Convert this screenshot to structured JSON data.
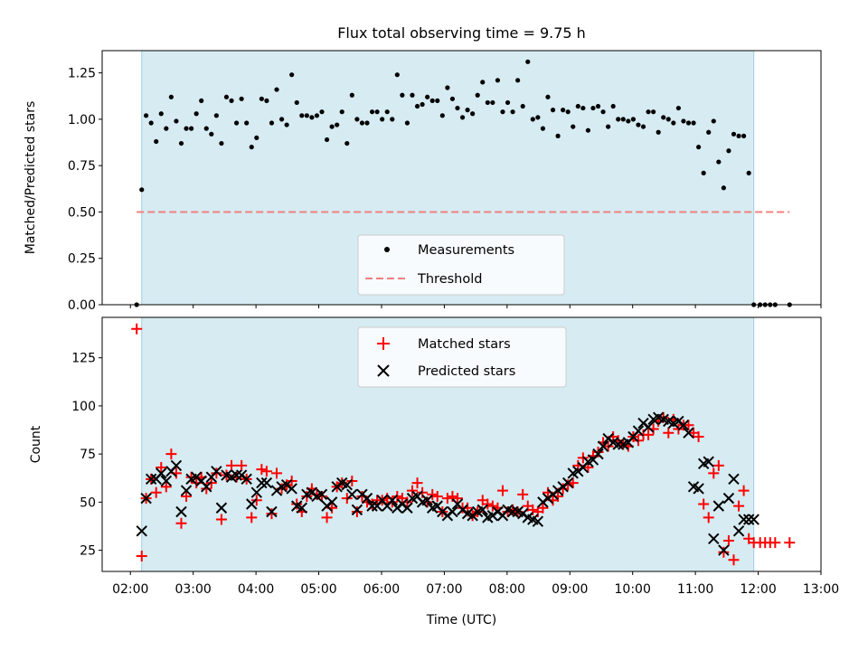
{
  "chart_data": [
    {
      "type": "scatter",
      "title": "Flux total observing time = 9.75 h",
      "ylabel": "Matched/Predicted stars",
      "xlabel": "",
      "xlim": [
        1.55,
        13.0
      ],
      "ylim": [
        0.0,
        1.37
      ],
      "yticks": [
        0.0,
        0.25,
        0.5,
        0.75,
        1.0,
        1.25
      ],
      "ytick_labels": [
        "0.00",
        "0.25",
        "0.50",
        "0.75",
        "1.00",
        "1.25"
      ],
      "shaded_span": [
        2.18,
        11.93
      ],
      "threshold": {
        "label": "Threshold",
        "value": 0.5,
        "x_range": [
          2.1,
          12.5
        ],
        "color": "#f08080"
      },
      "legend": {
        "position": "lower-center",
        "entries": [
          "Measurements",
          "Threshold"
        ]
      },
      "series": [
        {
          "name": "Measurements",
          "marker": "dot",
          "color": "#000000",
          "x": [
            2.1,
            2.18,
            2.25,
            2.33,
            2.41,
            2.49,
            2.57,
            2.65,
            2.73,
            2.81,
            2.89,
            2.97,
            3.05,
            3.13,
            3.21,
            3.29,
            3.37,
            3.45,
            3.53,
            3.61,
            3.69,
            3.77,
            3.85,
            3.93,
            4.01,
            4.09,
            4.17,
            4.25,
            4.33,
            4.41,
            4.49,
            4.57,
            4.65,
            4.73,
            4.81,
            4.89,
            4.97,
            5.05,
            5.13,
            5.21,
            5.29,
            5.37,
            5.45,
            5.53,
            5.61,
            5.69,
            5.77,
            5.85,
            5.93,
            6.01,
            6.09,
            6.17,
            6.25,
            6.33,
            6.41,
            6.49,
            6.57,
            6.65,
            6.73,
            6.81,
            6.89,
            6.97,
            7.05,
            7.13,
            7.21,
            7.29,
            7.37,
            7.45,
            7.53,
            7.61,
            7.69,
            7.77,
            7.85,
            7.93,
            8.01,
            8.09,
            8.17,
            8.25,
            8.33,
            8.41,
            8.49,
            8.57,
            8.65,
            8.73,
            8.81,
            8.89,
            8.97,
            9.05,
            9.13,
            9.21,
            9.29,
            9.37,
            9.45,
            9.53,
            9.61,
            9.69,
            9.77,
            9.85,
            9.93,
            10.01,
            10.09,
            10.17,
            10.25,
            10.33,
            10.41,
            10.49,
            10.57,
            10.65,
            10.73,
            10.81,
            10.89,
            10.97,
            11.05,
            11.13,
            11.21,
            11.29,
            11.37,
            11.45,
            11.53,
            11.61,
            11.69,
            11.77,
            11.85,
            11.93,
            12.03,
            12.11,
            12.19,
            12.27,
            12.5
          ],
          "y": [
            0.0,
            0.62,
            1.02,
            0.98,
            0.88,
            1.03,
            0.95,
            1.12,
            0.99,
            0.87,
            0.95,
            0.95,
            1.03,
            1.1,
            0.95,
            0.92,
            1.02,
            0.87,
            1.12,
            1.1,
            0.98,
            1.11,
            0.98,
            0.85,
            0.9,
            1.11,
            1.1,
            0.98,
            1.16,
            1.0,
            0.97,
            1.24,
            1.09,
            1.02,
            1.02,
            1.01,
            1.02,
            1.04,
            0.89,
            0.96,
            0.97,
            1.04,
            0.87,
            1.13,
            1.0,
            0.98,
            0.98,
            1.04,
            1.04,
            1.0,
            1.04,
            1.0,
            1.24,
            1.13,
            0.98,
            1.13,
            1.07,
            1.08,
            1.12,
            1.1,
            1.1,
            1.02,
            1.17,
            1.11,
            1.06,
            1.01,
            1.05,
            1.03,
            1.13,
            1.2,
            1.09,
            1.09,
            1.21,
            1.04,
            1.09,
            1.04,
            1.21,
            1.07,
            1.31,
            1.0,
            1.01,
            0.95,
            1.12,
            1.05,
            0.91,
            1.05,
            1.04,
            0.96,
            1.07,
            1.06,
            0.94,
            1.06,
            1.07,
            1.04,
            0.96,
            1.07,
            1.0,
            1.0,
            0.99,
            1.0,
            0.97,
            0.96,
            1.04,
            1.04,
            0.93,
            1.01,
            1.0,
            0.98,
            1.06,
            0.99,
            0.98,
            0.98,
            0.85,
            0.71,
            0.93,
            0.99,
            0.77,
            0.63,
            0.83,
            0.92,
            0.91,
            0.91,
            0.71,
            0.0,
            0.0,
            0.0,
            0.0,
            0.0,
            0.0
          ]
        }
      ]
    },
    {
      "type": "scatter",
      "title": "",
      "ylabel": "Count",
      "xlabel": "Time (UTC)",
      "xlim": [
        1.55,
        13.0
      ],
      "ylim": [
        14,
        146
      ],
      "yticks": [
        25,
        50,
        75,
        100,
        125
      ],
      "ytick_labels": [
        "25",
        "50",
        "75",
        "100",
        "125"
      ],
      "xticks": [
        2,
        3,
        4,
        5,
        6,
        7,
        8,
        9,
        10,
        11,
        12,
        13
      ],
      "xtick_labels": [
        "02:00",
        "03:00",
        "04:00",
        "05:00",
        "06:00",
        "07:00",
        "08:00",
        "09:00",
        "10:00",
        "11:00",
        "12:00",
        "13:00"
      ],
      "shaded_span": [
        2.18,
        11.93
      ],
      "legend": {
        "position": "upper-center",
        "entries": [
          "Matched stars",
          "Predicted stars"
        ]
      },
      "series": [
        {
          "name": "Matched stars",
          "marker": "plus",
          "color": "#ff0000",
          "x": [
            2.1,
            2.18,
            2.25,
            2.33,
            2.41,
            2.49,
            2.57,
            2.65,
            2.73,
            2.81,
            2.89,
            2.97,
            3.05,
            3.13,
            3.21,
            3.29,
            3.37,
            3.45,
            3.53,
            3.61,
            3.69,
            3.77,
            3.85,
            3.93,
            4.01,
            4.09,
            4.17,
            4.25,
            4.33,
            4.41,
            4.49,
            4.57,
            4.65,
            4.73,
            4.81,
            4.89,
            4.97,
            5.05,
            5.13,
            5.21,
            5.29,
            5.37,
            5.45,
            5.53,
            5.61,
            5.69,
            5.77,
            5.85,
            5.93,
            6.01,
            6.09,
            6.17,
            6.25,
            6.33,
            6.41,
            6.49,
            6.57,
            6.65,
            6.73,
            6.81,
            6.89,
            6.97,
            7.05,
            7.13,
            7.21,
            7.29,
            7.37,
            7.45,
            7.53,
            7.61,
            7.69,
            7.77,
            7.85,
            7.93,
            8.01,
            8.09,
            8.17,
            8.25,
            8.33,
            8.41,
            8.49,
            8.57,
            8.65,
            8.73,
            8.81,
            8.89,
            8.97,
            9.05,
            9.13,
            9.21,
            9.29,
            9.37,
            9.45,
            9.53,
            9.61,
            9.69,
            9.77,
            9.85,
            9.93,
            10.01,
            10.09,
            10.17,
            10.25,
            10.33,
            10.41,
            10.49,
            10.57,
            10.65,
            10.73,
            10.81,
            10.89,
            10.97,
            11.05,
            11.13,
            11.21,
            11.29,
            11.37,
            11.45,
            11.53,
            11.61,
            11.69,
            11.77,
            11.85,
            11.93,
            12.03,
            12.11,
            12.19,
            12.27,
            12.5
          ],
          "y": [
            140,
            22,
            52,
            62,
            55,
            68,
            58,
            75,
            65,
            39,
            53,
            63,
            60,
            63,
            57,
            60,
            65,
            41,
            64,
            69,
            63,
            69,
            62,
            42,
            51,
            67,
            66,
            44,
            65,
            57,
            59,
            61,
            49,
            45,
            53,
            57,
            54,
            53,
            42,
            47,
            58,
            60,
            52,
            61,
            45,
            53,
            50,
            49,
            51,
            51,
            52,
            50,
            53,
            52,
            50,
            56,
            60,
            55,
            50,
            54,
            53,
            45,
            52,
            53,
            52,
            47,
            47,
            43,
            45,
            51,
            49,
            48,
            47,
            56,
            45,
            46,
            45,
            54,
            48,
            46,
            45,
            47,
            55,
            51,
            53,
            57,
            59,
            60,
            69,
            73,
            68,
            74,
            76,
            81,
            79,
            84,
            82,
            80,
            79,
            84,
            82,
            85,
            85,
            88,
            92,
            94,
            86,
            93,
            88,
            90,
            90,
            86,
            84,
            49,
            42,
            65,
            69,
            24,
            30,
            20,
            48,
            56,
            31,
            29,
            29,
            29,
            29,
            29,
            29
          ]
        },
        {
          "name": "Predicted stars",
          "marker": "x",
          "color": "#000000",
          "x": [
            2.18,
            2.25,
            2.33,
            2.41,
            2.49,
            2.57,
            2.65,
            2.73,
            2.81,
            2.89,
            2.97,
            3.05,
            3.13,
            3.21,
            3.29,
            3.37,
            3.45,
            3.53,
            3.61,
            3.69,
            3.77,
            3.85,
            3.93,
            4.01,
            4.09,
            4.17,
            4.25,
            4.33,
            4.41,
            4.49,
            4.57,
            4.65,
            4.73,
            4.81,
            4.89,
            4.97,
            5.05,
            5.13,
            5.21,
            5.29,
            5.37,
            5.45,
            5.53,
            5.61,
            5.69,
            5.77,
            5.85,
            5.93,
            6.01,
            6.09,
            6.17,
            6.25,
            6.33,
            6.41,
            6.49,
            6.57,
            6.65,
            6.73,
            6.81,
            6.89,
            6.97,
            7.05,
            7.13,
            7.21,
            7.29,
            7.37,
            7.45,
            7.53,
            7.61,
            7.69,
            7.77,
            7.85,
            7.93,
            8.01,
            8.09,
            8.17,
            8.25,
            8.33,
            8.41,
            8.49,
            8.57,
            8.65,
            8.73,
            8.81,
            8.89,
            8.97,
            9.05,
            9.13,
            9.21,
            9.29,
            9.37,
            9.45,
            9.53,
            9.61,
            9.69,
            9.77,
            9.85,
            9.93,
            10.01,
            10.09,
            10.17,
            10.25,
            10.33,
            10.41,
            10.49,
            10.57,
            10.65,
            10.73,
            10.81,
            10.89,
            10.97,
            11.05,
            11.13,
            11.21,
            11.29,
            11.37,
            11.45,
            11.53,
            11.61,
            11.69,
            11.77,
            11.85,
            11.93
          ],
          "y": [
            35,
            52,
            62,
            62,
            65,
            61,
            66,
            69,
            45,
            56,
            62,
            63,
            61,
            58,
            63,
            66,
            47,
            64,
            63,
            64,
            64,
            62,
            49,
            55,
            60,
            60,
            45,
            56,
            58,
            59,
            57,
            48,
            47,
            54,
            55,
            53,
            54,
            48,
            50,
            58,
            60,
            59,
            54,
            46,
            54,
            52,
            48,
            48,
            51,
            48,
            51,
            47,
            49,
            47,
            52,
            53,
            50,
            51,
            47,
            48,
            45,
            43,
            45,
            49,
            46,
            44,
            43,
            45,
            46,
            42,
            43,
            45,
            43,
            46,
            45,
            45,
            44,
            42,
            41,
            40,
            50,
            52,
            54,
            56,
            58,
            60,
            65,
            66,
            68,
            71,
            72,
            75,
            79,
            83,
            81,
            80,
            80,
            81,
            84,
            87,
            91,
            89,
            93,
            94,
            93,
            92,
            91,
            92,
            90,
            86,
            58,
            57,
            70,
            71,
            31,
            48,
            25,
            52,
            62,
            35,
            41,
            41,
            41
          ]
        }
      ]
    }
  ]
}
